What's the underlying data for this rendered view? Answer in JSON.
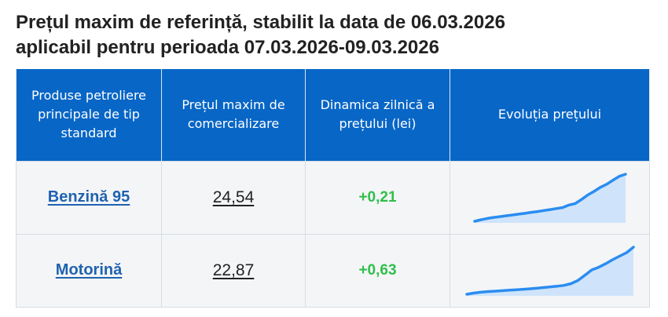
{
  "title": {
    "line1": "Prețul maxim de referință, stabilit la data de 06.03.2026",
    "line2": "aplicabil pentru perioada 07.03.2026-09.03.2026"
  },
  "table": {
    "headers": [
      "Produse petroliere principale de tip standard",
      "Prețul maxim de comercializare",
      "Dinamica zilnică a prețului (lei)",
      "Evoluția prețului"
    ],
    "rows": [
      {
        "product": "Benzină 95",
        "price": "24,54",
        "change": "+0,21",
        "trend": [
          19.9,
          20.05,
          20.18,
          20.28,
          20.36,
          20.44,
          20.52,
          20.6,
          20.68,
          20.78,
          20.86,
          20.96,
          21.05,
          21.15,
          21.25,
          21.5,
          21.65,
          22.05,
          22.5,
          22.85,
          23.25,
          23.55,
          23.95,
          24.33,
          24.54
        ]
      },
      {
        "product": "Motorină",
        "price": "22,87",
        "change": "+0,63",
        "trend": [
          17.55,
          17.68,
          17.78,
          17.85,
          17.9,
          17.95,
          18.0,
          18.05,
          18.1,
          18.16,
          18.22,
          18.3,
          18.38,
          18.45,
          18.55,
          18.75,
          19.1,
          19.7,
          20.3,
          20.6,
          21.0,
          21.45,
          21.85,
          22.24,
          22.87
        ]
      }
    ]
  },
  "colors": {
    "header_bg": "#0866c6",
    "link": "#1f62b0",
    "positive": "#2fbf4a",
    "spark_line": "#2b8df0",
    "spark_fill": "#cfe4fb"
  }
}
